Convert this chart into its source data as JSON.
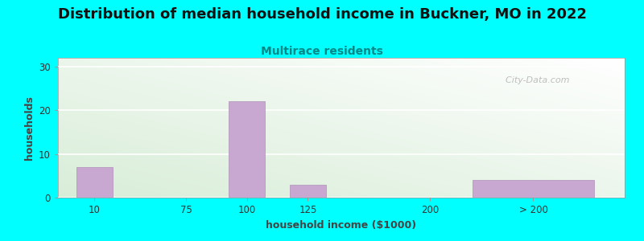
{
  "title": "Distribution of median household income in Buckner, MO in 2022",
  "subtitle": "Multirace residents",
  "subtitle_color": "#008888",
  "xlabel": "household income ($1000)",
  "ylabel": "households",
  "bar_lefts": [
    0.0,
    1.5,
    2.5,
    3.5,
    5.5,
    6.5
  ],
  "bar_widths": [
    0.6,
    0.6,
    0.6,
    0.6,
    0.6,
    2.0
  ],
  "bar_heights": [
    7,
    0,
    22,
    3,
    0,
    4
  ],
  "bar_color": "#C8A8D0",
  "bar_edgecolor": "#B090B8",
  "xtick_positions": [
    0.3,
    1.8,
    2.8,
    3.8,
    5.8,
    7.5
  ],
  "xtick_labels": [
    "10",
    "75",
    "100",
    "125",
    "200",
    "> 200"
  ],
  "yticks": [
    0,
    10,
    20,
    30
  ],
  "ylim": [
    0,
    32
  ],
  "xlim": [
    -0.3,
    9.0
  ],
  "background_outer": "#00FFFF",
  "plot_bg_top_left": "#D8EDD8",
  "plot_bg_bot_right": "#FFFFFF",
  "title_fontsize": 13,
  "subtitle_fontsize": 10,
  "axis_label_fontsize": 9,
  "watermark_text": "  City-Data.com"
}
